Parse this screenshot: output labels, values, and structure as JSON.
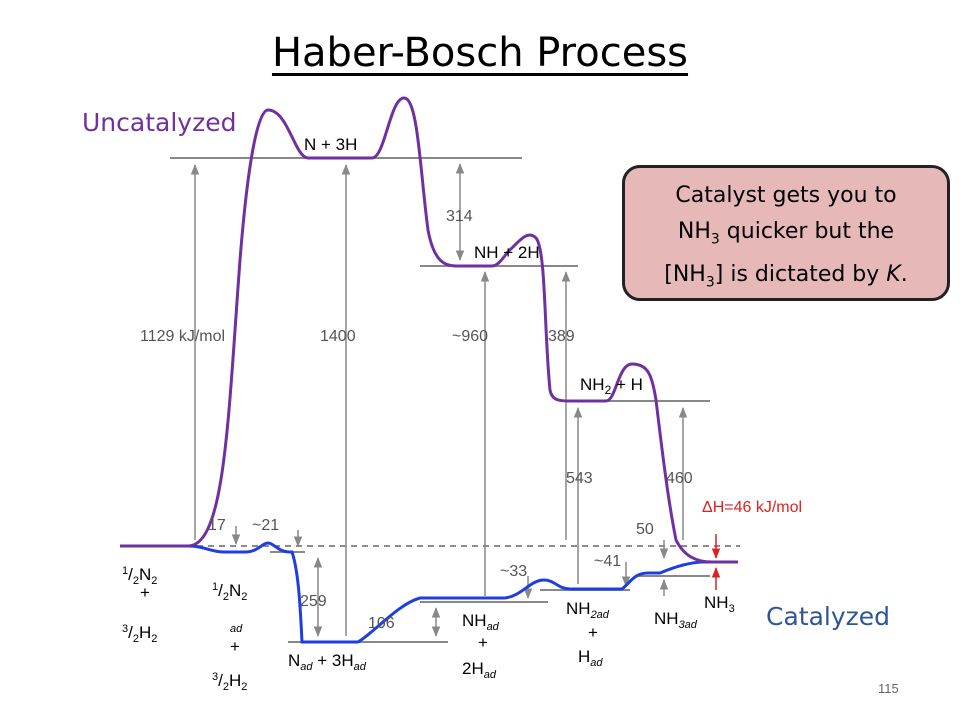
{
  "title": "Haber-Bosch Process",
  "label_uncatalyzed": "Uncatalyzed",
  "label_catalyzed": "Catalyzed",
  "callout": {
    "line1": "Catalyst gets you to",
    "line2_pre": "NH",
    "line2_sub": "3",
    "line2_post": " quicker but the",
    "line3_pre": "[NH",
    "line3_sub": "3",
    "line3_mid": "] is dictated by ",
    "line3_k": "K",
    "line3_end": "."
  },
  "page_number": "115",
  "energies": {
    "e1129": "1129 kJ/mol",
    "e1400": "1400",
    "e960": "~960",
    "e314": "314",
    "e389": "389",
    "e543": "543",
    "e460": "460",
    "e17": "17",
    "e21": "~21",
    "e259": "259",
    "e106": "106",
    "e33": "~33",
    "e41": "~41",
    "e50": "50",
    "dh": "ΔH=46 kJ/mol"
  },
  "species": {
    "n3h": "N + 3H",
    "nh2h": "NH + 2H",
    "nh2h2": "NH",
    "nh2h2_sub": "2",
    "nh2h2_post": " + H",
    "nh": "NH",
    "three": "3",
    "ad": "ad",
    "plus": "+",
    "n": "N",
    "h": "H",
    "one": "1",
    "two": "2",
    "n_ad_post": " + 3H",
    "two_h": "2H"
  }
}
